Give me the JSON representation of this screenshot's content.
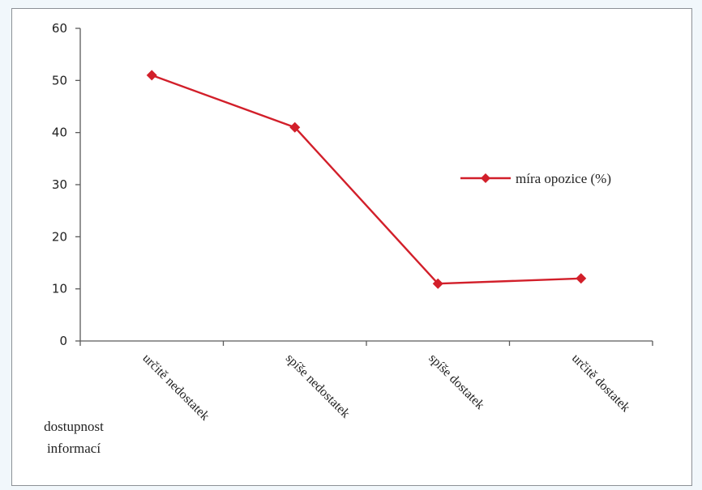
{
  "chart_data": {
    "type": "line",
    "categories": [
      "určitě nedostatek",
      "spíše nedostatek",
      "spíše dostatek",
      "určitě dostatek"
    ],
    "series": [
      {
        "name": "míra opozice (%)",
        "values": [
          51,
          41,
          11,
          12
        ],
        "color": "#d21f2a",
        "marker": "diamond"
      }
    ],
    "ylim": [
      0,
      60
    ],
    "yticks": [
      0,
      10,
      20,
      30,
      40,
      50,
      60
    ],
    "yticks_labels": [
      "0",
      "10",
      "20",
      "30",
      "40",
      "50",
      "60"
    ],
    "xlabel": "dostupnost informací",
    "xlabel_lines": [
      "dostupnost",
      "informací"
    ],
    "ylabel": "",
    "title": "",
    "legend_position": "right",
    "grid": false
  }
}
